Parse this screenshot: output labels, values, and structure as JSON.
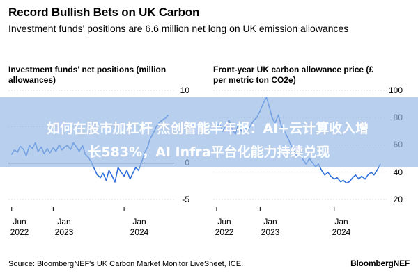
{
  "title": "Record Bullish Bets on UK Carbon",
  "subtitle": "Investment funds' positions are 6.6 million net long on UK emission allowances",
  "overlay": {
    "line1": "如何在股市加杠杆 杰创智能半年报：AI+云计算收入增",
    "line2": "长583%，AI Infra平台化能力持续兑现"
  },
  "source": "Source: BloombergNEF's UK Carbon Market Monitor LiveSheet, ICE.",
  "brand": "BloombergNEF",
  "colors": {
    "line": "#2f6fdc",
    "grid": "#d4d4d4",
    "zero": "#000000"
  },
  "chart_data": [
    {
      "type": "line",
      "title_lines": [
        "Investment funds' net positions (million",
        "allowances)"
      ],
      "ylim": [
        -5,
        10
      ],
      "yticks": [
        10,
        5,
        0,
        -5
      ],
      "x_tick_labels": [
        [
          "Jun",
          "2022"
        ],
        [
          "Jan",
          "2023"
        ],
        [
          "Jan",
          "2024"
        ]
      ],
      "x_tick_dates": [
        "2022-06-01",
        "2023-01-01",
        "2024-01-01"
      ],
      "xlim": [
        "2022-05-15",
        "2024-09-15"
      ],
      "series": [
        {
          "x": [
            "2022-06-01",
            "2022-06-15",
            "2022-07-01",
            "2022-07-15",
            "2022-08-01",
            "2022-08-15",
            "2022-09-01",
            "2022-09-15",
            "2022-10-01",
            "2022-10-15",
            "2022-11-01",
            "2022-11-15",
            "2022-12-01",
            "2022-12-15",
            "2023-01-01",
            "2023-01-15",
            "2023-02-01",
            "2023-02-15",
            "2023-03-01",
            "2023-03-15",
            "2023-04-01",
            "2023-04-15",
            "2023-05-01",
            "2023-05-15",
            "2023-06-01",
            "2023-06-15",
            "2023-07-01",
            "2023-07-15",
            "2023-08-01",
            "2023-08-15",
            "2023-09-01",
            "2023-09-15",
            "2023-10-01",
            "2023-10-15",
            "2023-11-01",
            "2023-11-15",
            "2023-12-01",
            "2023-12-15",
            "2024-01-01",
            "2024-01-15",
            "2024-02-01",
            "2024-02-15",
            "2024-03-01",
            "2024-03-15",
            "2024-04-01",
            "2024-04-15",
            "2024-05-01",
            "2024-05-15",
            "2024-06-01",
            "2024-06-15",
            "2024-07-01",
            "2024-07-15",
            "2024-08-01",
            "2024-08-15"
          ],
          "values": [
            1.2,
            1.8,
            1.5,
            2.3,
            1.9,
            1.0,
            2.4,
            2.0,
            2.8,
            1.6,
            2.2,
            1.3,
            2.0,
            1.4,
            2.1,
            1.6,
            2.5,
            1.8,
            2.2,
            2.4,
            1.9,
            2.8,
            2.2,
            1.6,
            2.4,
            1.2,
            0.8,
            0.2,
            -0.8,
            -1.6,
            -2.0,
            -1.4,
            -2.4,
            -1.0,
            -1.8,
            -2.6,
            -0.6,
            -1.2,
            -1.8,
            -1.0,
            -2.2,
            -1.4,
            -0.6,
            -1.0,
            0.2,
            1.4,
            2.2,
            3.4,
            4.2,
            5.0,
            5.6,
            5.9,
            6.2,
            6.6
          ]
        }
      ]
    },
    {
      "type": "line",
      "title_lines": [
        "Front-year UK carbon allowance price (£",
        "per metric ton CO2e)"
      ],
      "ylim": [
        20,
        100
      ],
      "yticks": [
        100,
        80,
        60,
        40,
        20
      ],
      "x_tick_labels": [
        [
          "Jun",
          "2022"
        ],
        [
          "Jan",
          "2023"
        ],
        [
          "Jan",
          "2024"
        ]
      ],
      "x_tick_dates": [
        "2022-06-01",
        "2023-01-01",
        "2024-01-01"
      ],
      "xlim": [
        "2022-05-15",
        "2024-09-15"
      ],
      "series": [
        {
          "x": [
            "2022-06-01",
            "2022-06-15",
            "2022-07-01",
            "2022-07-15",
            "2022-08-01",
            "2022-08-15",
            "2022-09-01",
            "2022-09-15",
            "2022-10-01",
            "2022-10-15",
            "2022-11-01",
            "2022-11-15",
            "2022-12-01",
            "2022-12-15",
            "2023-01-01",
            "2023-01-15",
            "2023-02-01",
            "2023-02-15",
            "2023-03-01",
            "2023-03-15",
            "2023-04-01",
            "2023-04-15",
            "2023-05-01",
            "2023-05-15",
            "2023-06-01",
            "2023-06-15",
            "2023-07-01",
            "2023-07-15",
            "2023-08-01",
            "2023-08-15",
            "2023-09-01",
            "2023-09-15",
            "2023-10-01",
            "2023-10-15",
            "2023-11-01",
            "2023-11-15",
            "2023-12-01",
            "2023-12-15",
            "2024-01-01",
            "2024-01-15",
            "2024-02-01",
            "2024-02-15",
            "2024-03-01",
            "2024-03-15",
            "2024-04-01",
            "2024-04-15",
            "2024-05-01",
            "2024-05-15",
            "2024-06-01",
            "2024-06-15",
            "2024-07-01",
            "2024-07-15",
            "2024-08-01",
            "2024-08-15"
          ],
          "values": [
            72,
            76,
            70,
            74,
            78,
            72,
            68,
            75,
            70,
            73,
            71,
            74,
            78,
            80,
            85,
            90,
            95,
            88,
            80,
            76,
            82,
            74,
            70,
            66,
            60,
            56,
            52,
            54,
            49,
            46,
            50,
            47,
            44,
            46,
            41,
            38,
            40,
            37,
            35,
            36,
            33,
            34,
            32,
            33,
            36,
            38,
            35,
            37,
            35,
            38,
            40,
            38,
            42,
            46
          ]
        }
      ]
    }
  ]
}
